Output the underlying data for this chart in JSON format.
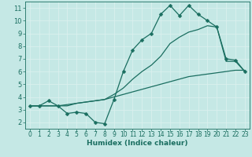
{
  "xlabel": "Humidex (Indice chaleur)",
  "bg_color": "#c5e8e5",
  "grid_color": "#daf0ee",
  "line_color": "#1a6e60",
  "xlim": [
    -0.5,
    23.5
  ],
  "ylim": [
    1.5,
    11.5
  ],
  "xticks": [
    0,
    1,
    2,
    3,
    4,
    5,
    6,
    7,
    8,
    9,
    10,
    11,
    12,
    13,
    14,
    15,
    16,
    17,
    18,
    19,
    20,
    21,
    22,
    23
  ],
  "yticks": [
    2,
    3,
    4,
    5,
    6,
    7,
    8,
    9,
    10,
    11
  ],
  "line1_x": [
    0,
    1,
    2,
    3,
    4,
    5,
    6,
    7,
    8,
    9,
    10,
    11,
    12,
    13,
    14,
    15,
    16,
    17,
    18,
    19,
    20,
    21,
    22,
    23
  ],
  "line1_y": [
    3.3,
    3.3,
    3.7,
    3.3,
    2.7,
    2.8,
    2.7,
    2.0,
    1.9,
    3.8,
    6.0,
    7.7,
    8.5,
    9.0,
    10.5,
    11.2,
    10.4,
    11.2,
    10.5,
    10.0,
    9.5,
    7.0,
    6.9,
    6.0
  ],
  "line2_x": [
    0,
    1,
    2,
    3,
    4,
    5,
    6,
    7,
    8,
    9,
    10,
    11,
    12,
    13,
    14,
    15,
    16,
    17,
    18,
    19,
    20,
    21,
    22,
    23
  ],
  "line2_y": [
    3.3,
    3.3,
    3.3,
    3.3,
    3.4,
    3.5,
    3.6,
    3.7,
    3.8,
    4.0,
    4.2,
    4.4,
    4.6,
    4.8,
    5.0,
    5.2,
    5.4,
    5.6,
    5.7,
    5.8,
    5.9,
    6.0,
    6.1,
    6.1
  ],
  "line3_x": [
    0,
    1,
    2,
    3,
    4,
    5,
    6,
    7,
    8,
    9,
    10,
    11,
    12,
    13,
    14,
    15,
    16,
    17,
    18,
    19,
    20,
    21,
    22,
    23
  ],
  "line3_y": [
    3.3,
    3.3,
    3.3,
    3.3,
    3.3,
    3.5,
    3.6,
    3.7,
    3.8,
    4.2,
    4.7,
    5.4,
    6.0,
    6.5,
    7.2,
    8.2,
    8.7,
    9.1,
    9.3,
    9.6,
    9.5,
    6.8,
    6.8,
    6.0
  ],
  "marker_size": 2.5,
  "line_width": 0.9,
  "tick_fontsize": 5.5,
  "xlabel_fontsize": 6.5
}
